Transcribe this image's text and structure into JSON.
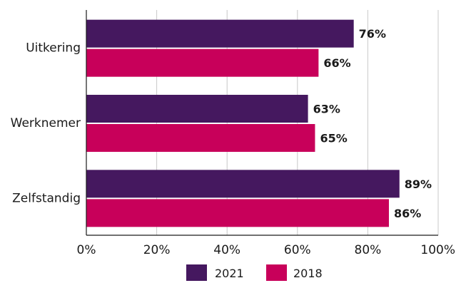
{
  "chart_data": {
    "type": "bar",
    "orientation": "horizontal",
    "categories": [
      "Uitkering",
      "Werknemer",
      "Zelfstandig"
    ],
    "series": [
      {
        "name": "2021",
        "color": "#45185f",
        "values": [
          76,
          63,
          89
        ],
        "labels": [
          "76%",
          "63%",
          "89%"
        ]
      },
      {
        "name": "2018",
        "color": "#c8005a",
        "values": [
          66,
          65,
          86
        ],
        "labels": [
          "66%",
          "65%",
          "86%"
        ]
      }
    ],
    "xlim": [
      0,
      100
    ],
    "xticks": [
      0,
      20,
      40,
      60,
      80,
      100
    ],
    "xtick_labels": [
      "0%",
      "20%",
      "40%",
      "60%",
      "80%",
      "100%"
    ],
    "grid": true,
    "legend_position": "bottom-center",
    "title": "",
    "xlabel": "",
    "ylabel": ""
  }
}
